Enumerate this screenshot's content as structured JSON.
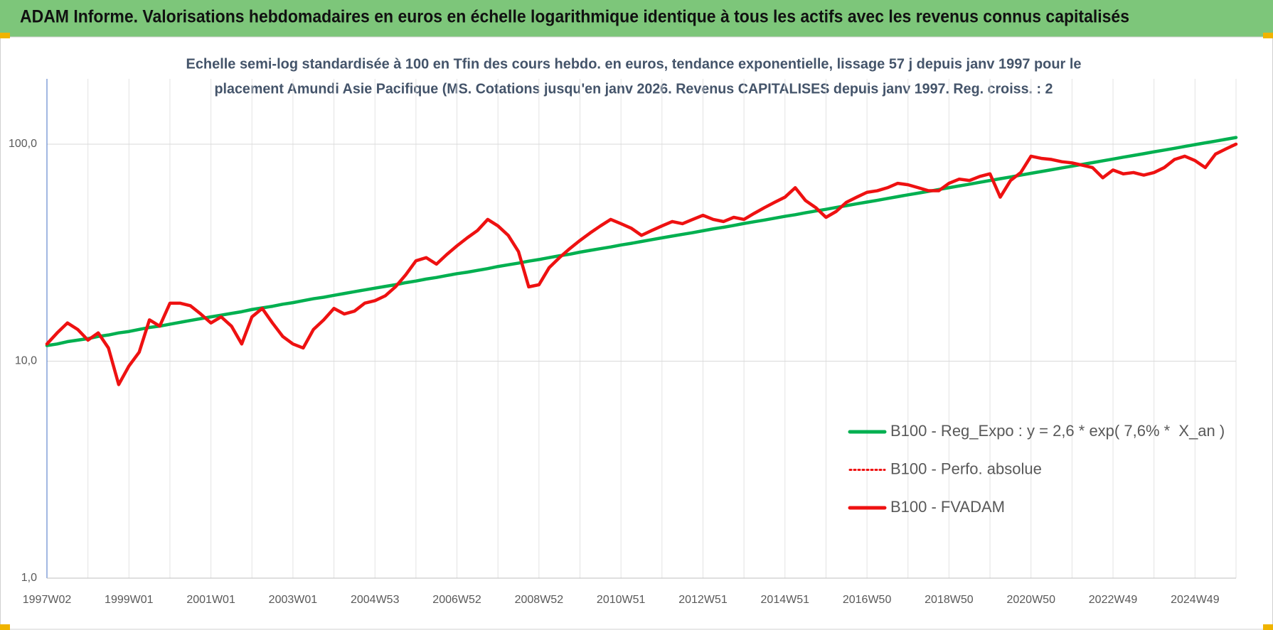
{
  "chart_data": {
    "type": "line",
    "title": "ADAM Informe. Valorisations hebdomadaires en euros en échelle logarithmique identique à tous les actifs avec les revenus connus capitalisés",
    "subtitle": [
      "Echelle semi-log standardisée à 100 en Tfin des cours hebdo. en euros, tendance exponentielle, lissage 57 j depuis janv 1997 pour le",
      "placement Amundi Asie Pacifique (MS. Cotations jusqu'en janv 2026. Revenus CAPITALISES depuis janv 1997. Reg. croiss. : 2"
    ],
    "log_scale": true,
    "grid": true,
    "legend_position": "right",
    "ylim": [
      1,
      200
    ],
    "yticks": [
      {
        "value": 1,
        "label": "1,0"
      },
      {
        "value": 10,
        "label": "10,0"
      },
      {
        "value": 100,
        "label": "100,0"
      }
    ],
    "categories": [
      "1997W02",
      null,
      null,
      null,
      null,
      null,
      null,
      null,
      "1999W01",
      null,
      null,
      null,
      null,
      null,
      null,
      null,
      "2001W01",
      null,
      null,
      null,
      null,
      null,
      null,
      null,
      "2003W01",
      null,
      null,
      null,
      null,
      null,
      null,
      null,
      "2004W53",
      null,
      null,
      null,
      null,
      null,
      null,
      null,
      "2006W52",
      null,
      null,
      null,
      null,
      null,
      null,
      null,
      "2008W52",
      null,
      null,
      null,
      null,
      null,
      null,
      null,
      "2010W51",
      null,
      null,
      null,
      null,
      null,
      null,
      null,
      "2012W51",
      null,
      null,
      null,
      null,
      null,
      null,
      null,
      "2014W51",
      null,
      null,
      null,
      null,
      null,
      null,
      null,
      "2016W50",
      null,
      null,
      null,
      null,
      null,
      null,
      null,
      "2018W50",
      null,
      null,
      null,
      null,
      null,
      null,
      null,
      "2020W50",
      null,
      null,
      null,
      null,
      null,
      null,
      null,
      "2022W49",
      null,
      null,
      null,
      null,
      null,
      null,
      null,
      "2024W49",
      null,
      null,
      null,
      null
    ],
    "series": [
      {
        "name": "B100 - Reg_Expo : y = 2,6 * exp( 7,6% *  X_an )",
        "color": "#00b050",
        "style": "solid",
        "values": [
          11.8,
          12.0,
          12.3,
          12.5,
          12.7,
          13.0,
          13.2,
          13.5,
          13.7,
          14.0,
          14.3,
          14.5,
          14.8,
          15.1,
          15.4,
          15.7,
          16.0,
          16.3,
          16.6,
          16.9,
          17.3,
          17.6,
          17.9,
          18.3,
          18.6,
          19.0,
          19.4,
          19.7,
          20.1,
          20.5,
          20.9,
          21.3,
          21.7,
          22.1,
          22.5,
          23.0,
          23.4,
          23.9,
          24.3,
          24.8,
          25.3,
          25.7,
          26.2,
          26.7,
          27.3,
          27.8,
          28.3,
          28.9,
          29.4,
          30.0,
          30.6,
          31.1,
          31.8,
          32.4,
          33.0,
          33.6,
          34.3,
          34.9,
          35.6,
          36.3,
          37.0,
          37.7,
          38.4,
          39.1,
          39.9,
          40.7,
          41.4,
          42.2,
          43.1,
          43.9,
          44.7,
          45.6,
          46.5,
          47.3,
          48.3,
          49.2,
          50.1,
          51.1,
          52.1,
          53.1,
          54.1,
          55.1,
          56.2,
          57.3,
          58.4,
          59.5,
          60.6,
          61.8,
          63.0,
          64.2,
          65.4,
          66.7,
          68.0,
          69.3,
          70.6,
          72.0,
          73.4,
          74.8,
          76.2,
          77.7,
          79.2,
          80.7,
          82.2,
          83.8,
          85.4,
          87.1,
          88.7,
          90.4,
          92.2,
          93.9,
          95.7,
          97.6,
          99.5,
          101.4,
          103.3,
          105.3,
          107.3
        ]
      },
      {
        "name": "B100 - Perfo. absolue",
        "color": "#ee1111",
        "style": "dotted",
        "values": [
          12,
          13.5,
          15,
          14,
          12.5,
          13.5,
          11.5,
          7.8,
          9.5,
          11,
          15.5,
          14.5,
          18.5,
          18.5,
          18,
          16.5,
          15,
          16,
          14.5,
          12,
          16,
          17.5,
          15,
          13,
          12,
          11.5,
          14,
          15.5,
          17.5,
          16.5,
          17,
          18.5,
          19,
          20,
          22,
          25,
          29,
          30,
          28,
          31,
          34,
          37,
          40,
          45,
          42,
          38,
          32,
          22,
          22.5,
          27,
          30,
          33,
          36,
          39,
          42,
          45,
          43,
          41,
          38,
          40,
          42,
          44,
          43,
          45,
          47,
          45,
          44,
          46,
          45,
          48,
          51,
          54,
          57,
          63,
          55,
          51,
          46,
          49,
          54,
          57,
          60,
          61,
          63,
          66,
          65,
          63,
          61,
          61,
          66,
          69,
          68,
          71,
          73,
          57,
          68,
          74,
          88,
          86,
          85,
          83,
          82,
          80,
          78,
          70,
          76,
          73,
          74,
          72,
          74,
          78,
          85,
          88,
          84,
          78,
          90,
          95,
          100
        ]
      },
      {
        "name": "B100 - FVADAM",
        "color": "#ee1111",
        "style": "solid",
        "values": [
          12,
          13.5,
          15,
          14,
          12.5,
          13.5,
          11.5,
          7.8,
          9.5,
          11,
          15.5,
          14.5,
          18.5,
          18.5,
          18,
          16.5,
          15,
          16,
          14.5,
          12,
          16,
          17.5,
          15,
          13,
          12,
          11.5,
          14,
          15.5,
          17.5,
          16.5,
          17,
          18.5,
          19,
          20,
          22,
          25,
          29,
          30,
          28,
          31,
          34,
          37,
          40,
          45,
          42,
          38,
          32,
          22,
          22.5,
          27,
          30,
          33,
          36,
          39,
          42,
          45,
          43,
          41,
          38,
          40,
          42,
          44,
          43,
          45,
          47,
          45,
          44,
          46,
          45,
          48,
          51,
          54,
          57,
          63,
          55,
          51,
          46,
          49,
          54,
          57,
          60,
          61,
          63,
          66,
          65,
          63,
          61,
          61,
          66,
          69,
          68,
          71,
          73,
          57,
          68,
          74,
          88,
          86,
          85,
          83,
          82,
          80,
          78,
          70,
          76,
          73,
          74,
          72,
          74,
          78,
          85,
          88,
          84,
          78,
          90,
          95,
          100
        ]
      }
    ]
  }
}
